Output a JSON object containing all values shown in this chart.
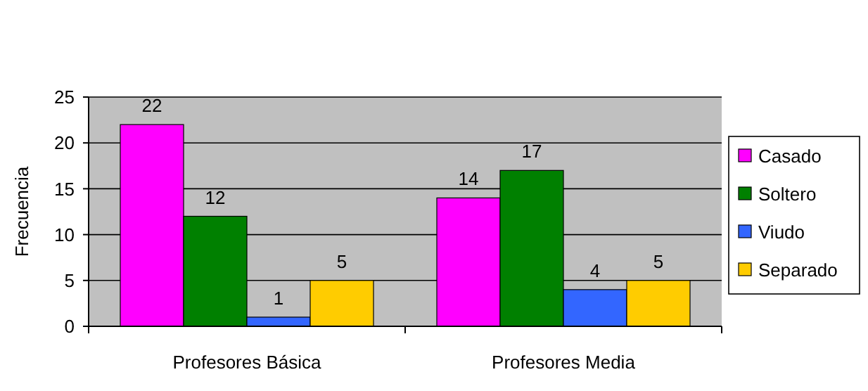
{
  "chart_data": {
    "type": "bar",
    "ylabel": "Frecuencia",
    "categories": [
      "Profesores Básica",
      "Profesores Media"
    ],
    "series": [
      {
        "name": "Casado",
        "color": "#ff00ff",
        "values": [
          22,
          14
        ]
      },
      {
        "name": "Soltero",
        "color": "#008000",
        "values": [
          12,
          17
        ]
      },
      {
        "name": "Viudo",
        "color": "#3366ff",
        "values": [
          1,
          4
        ]
      },
      {
        "name": "Separado",
        "color": "#ffcc00",
        "values": [
          5,
          5
        ]
      }
    ],
    "ylim": [
      0,
      25
    ],
    "yticks": [
      0,
      5,
      10,
      15,
      20,
      25
    ],
    "grid": "y",
    "data_labels": true,
    "legend": "right"
  }
}
